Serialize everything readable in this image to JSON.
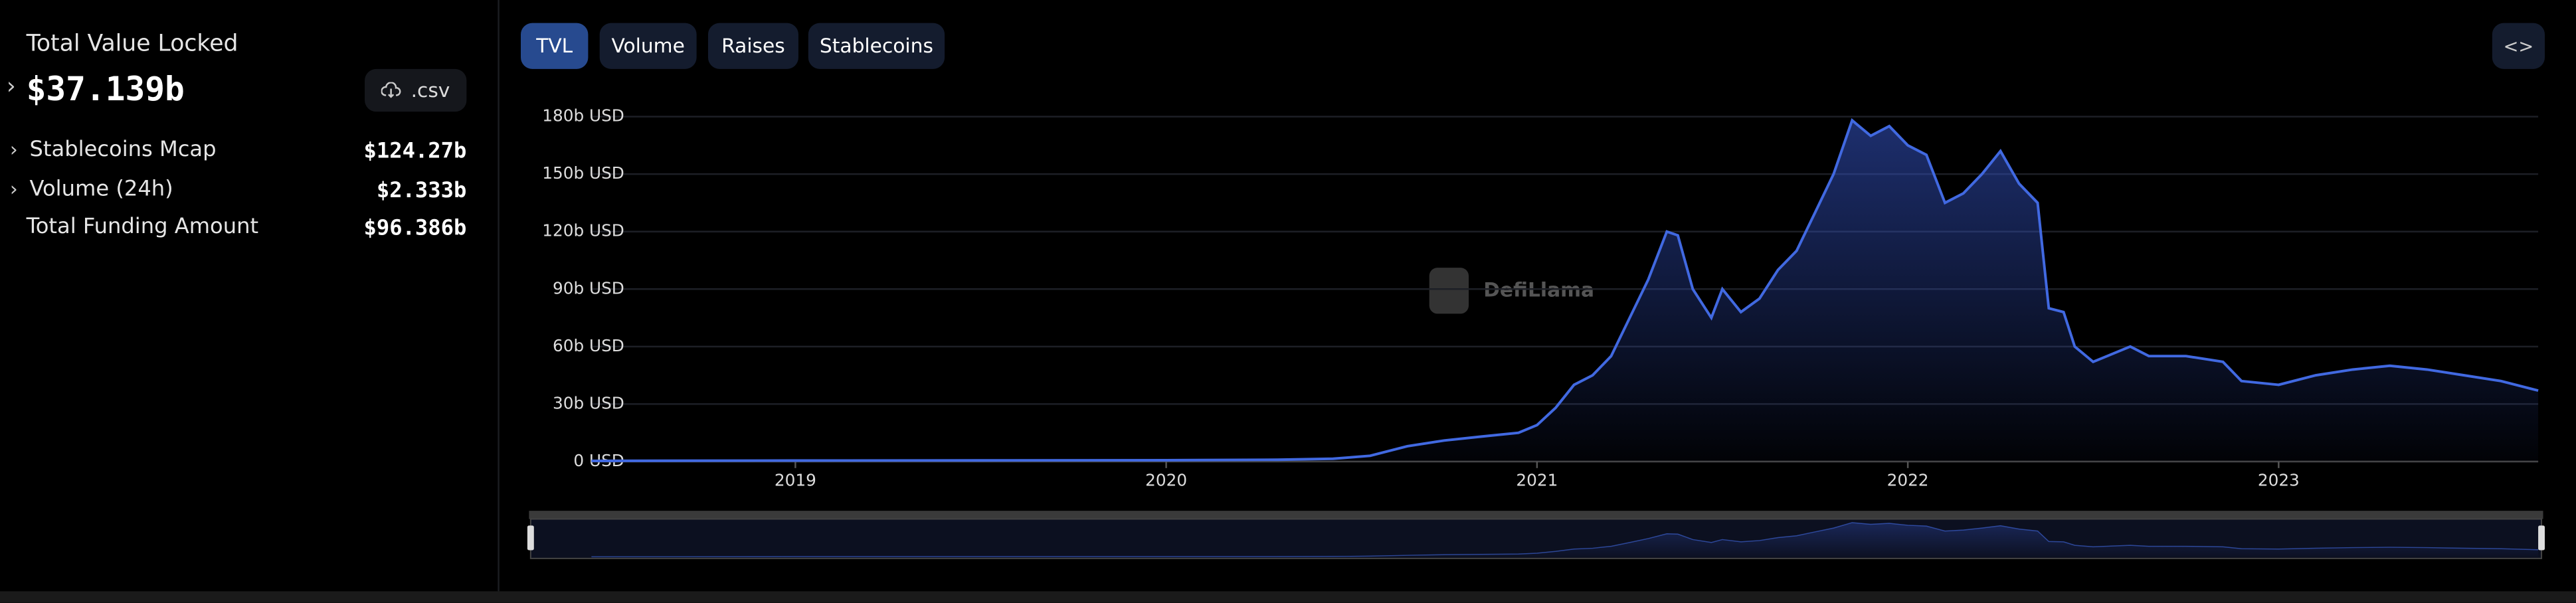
{
  "sidebar": {
    "tvl_label": "Total Value Locked",
    "tvl_value": "$37.139b",
    "csv_button": ".csv",
    "metrics": [
      {
        "label": "Stablecoins Mcap",
        "value": "$124.27b"
      },
      {
        "label": "Volume (24h)",
        "value": "$2.333b"
      },
      {
        "label": "Total Funding Amount",
        "value": "$96.386b"
      }
    ]
  },
  "tabs": [
    "TVL",
    "Volume",
    "Raises",
    "Stablecoins"
  ],
  "chart_data": {
    "type": "area",
    "watermark": "DefiLlama",
    "color": "#4169e1",
    "x": [
      2018.45,
      2019.0,
      2019.5,
      2020.0,
      2020.3,
      2020.45,
      2020.55,
      2020.65,
      2020.75,
      2020.85,
      2020.95,
      2021.0,
      2021.05,
      2021.1,
      2021.15,
      2021.2,
      2021.25,
      2021.3,
      2021.35,
      2021.38,
      2021.42,
      2021.47,
      2021.5,
      2021.55,
      2021.6,
      2021.65,
      2021.7,
      2021.75,
      2021.8,
      2021.85,
      2021.9,
      2021.95,
      2022.0,
      2022.05,
      2022.1,
      2022.15,
      2022.2,
      2022.25,
      2022.3,
      2022.35,
      2022.38,
      2022.42,
      2022.45,
      2022.5,
      2022.6,
      2022.65,
      2022.75,
      2022.85,
      2022.9,
      2023.0,
      2023.1,
      2023.2,
      2023.3,
      2023.4,
      2023.5,
      2023.6,
      2023.7
    ],
    "values": [
      0.3,
      0.5,
      0.6,
      0.7,
      0.9,
      1.5,
      3,
      8,
      11,
      13,
      15,
      19,
      28,
      40,
      45,
      55,
      75,
      95,
      120,
      118,
      90,
      75,
      90,
      78,
      85,
      100,
      110,
      130,
      150,
      178,
      170,
      175,
      165,
      160,
      135,
      140,
      150,
      162,
      145,
      135,
      80,
      78,
      60,
      52,
      60,
      55,
      55,
      52,
      42,
      40,
      45,
      48,
      50,
      48,
      45,
      42,
      37
    ],
    "xlim": [
      2018.45,
      2023.7
    ],
    "xticks": [
      2019,
      2020,
      2021,
      2022,
      2023
    ],
    "ylim": [
      0,
      180
    ],
    "yticks": [
      {
        "value": 0,
        "label": "0 USD"
      },
      {
        "value": 30,
        "label": "30b USD"
      },
      {
        "value": 60,
        "label": "60b USD"
      },
      {
        "value": 90,
        "label": "90b USD"
      },
      {
        "value": 120,
        "label": "120b USD"
      },
      {
        "value": 150,
        "label": "150b USD"
      },
      {
        "value": 180,
        "label": "180b USD"
      }
    ],
    "grid": true
  }
}
